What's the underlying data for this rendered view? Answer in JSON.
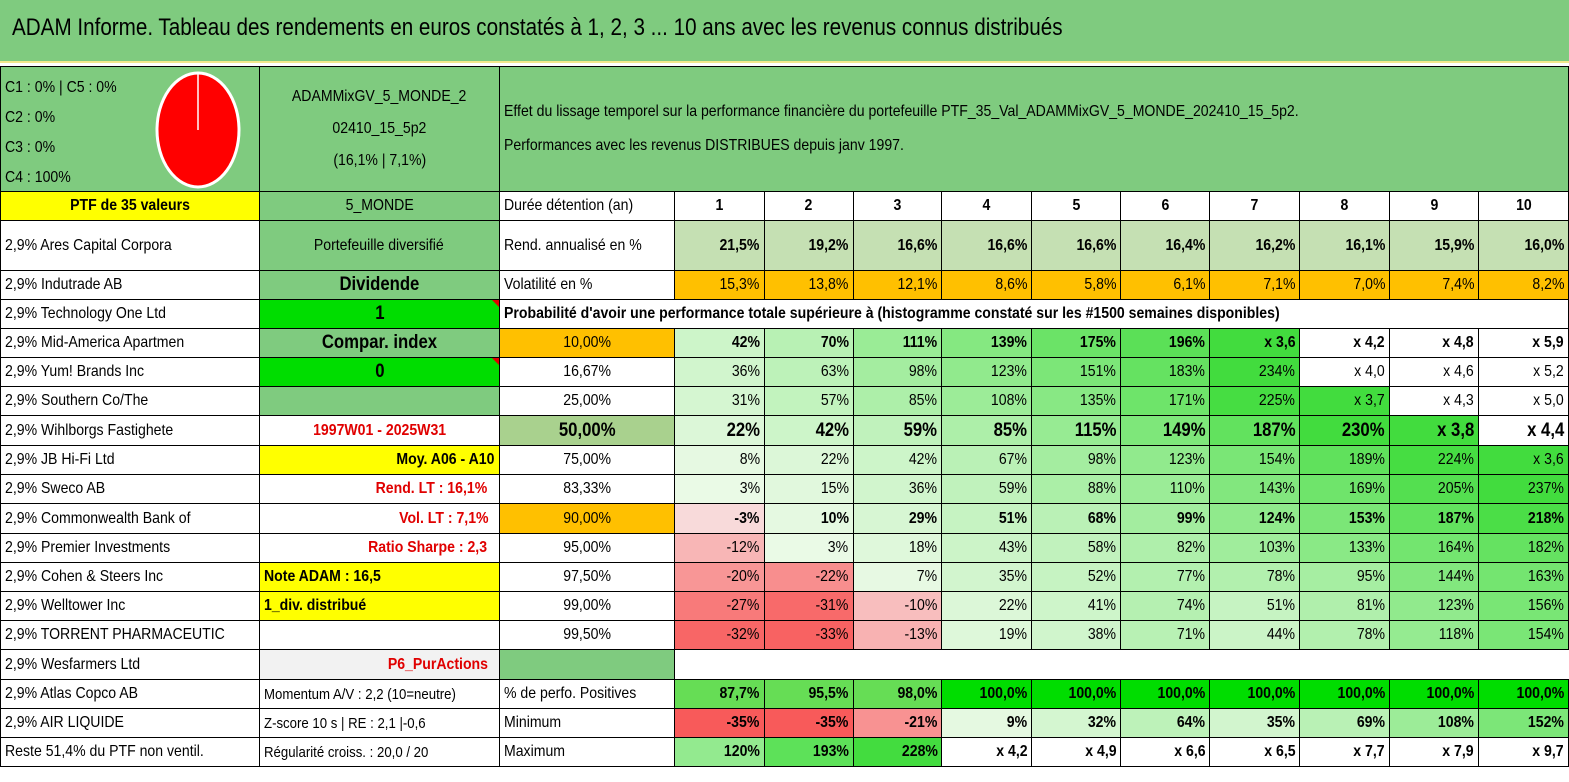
{
  "title": "ADAM Informe. Tableau des rendements en euros constatés à 1, 2, 3 ... 10 ans avec les revenus connus distribués",
  "allocation": {
    "lines": [
      "C1 : 0% | C5 : 0%",
      "C2 : 0%",
      "C3 : 0%",
      "C4 : 100%"
    ],
    "pie_color": "#ff0000"
  },
  "portfolio": {
    "name_line1": "ADAMMixGV_5_MONDE_2",
    "name_line2": "02410_15_5p2",
    "name_line3": "(16,1% | 7,1%)"
  },
  "effect": {
    "line1": "Effet du lissage temporel sur la performance financière du portefeuille PTF_35_Val_ADAMMixGV_5_MONDE_202410_15_5p2.",
    "line2": "Performances avec les revenus DISTRIBUES depuis janv 1997."
  },
  "header_row": {
    "ptf": "PTF de 35 valeurs",
    "zone": "5_MONDE",
    "label": "Durée détention (an)",
    "years": [
      "1",
      "2",
      "3",
      "4",
      "5",
      "6",
      "7",
      "8",
      "9",
      "10"
    ]
  },
  "holdings": [
    "2,9% Ares Capital Corpora",
    "2,9% Indutrade AB",
    "2,9% Technology One Ltd",
    "2,9% Mid-America Apartmen",
    "2,9% Yum! Brands Inc",
    "2,9% Southern Co/The",
    "2,9% Wihlborgs Fastighete",
    "2,9% JB Hi-Fi Ltd",
    "2,9% Sweco AB",
    "2,9% Commonwealth Bank of",
    "2,9% Premier Investments",
    "2,9% Cohen & Steers Inc",
    "2,9% Welltower Inc",
    "2,9% TORRENT PHARMACEUTIC",
    "2,9% Wesfarmers Ltd",
    "2,9% Atlas Copco AB",
    "2,9% AIR LIQUIDE",
    "Reste 51,4% du PTF non ventil."
  ],
  "info": [
    "Portefeuille diversifié",
    "Dividende",
    "1",
    "Compar. index",
    "0",
    "",
    "1997W01 - 2025W31",
    "Moy. A06 - A10",
    "Rend. LT : 16,1%",
    "Vol. LT : 7,1%",
    "Ratio Sharpe : 2,3",
    "Note ADAM : 16,5",
    "1_div. distribué",
    "",
    "P6_PurActions",
    "Momentum A/V : 2,2 (10=neutre)",
    "Z-score 10 s | RE : 2,1 |-0,6",
    "Régularité croiss. : 20,0 / 20"
  ],
  "rend_row": {
    "label": "Rend. annualisé en %",
    "values": [
      "21,5%",
      "19,2%",
      "16,6%",
      "16,6%",
      "16,6%",
      "16,4%",
      "16,2%",
      "16,1%",
      "15,9%",
      "16,0%"
    ]
  },
  "vol_row": {
    "label": "Volatilité en %",
    "values": [
      "15,3%",
      "13,8%",
      "12,1%",
      "8,6%",
      "5,8%",
      "6,1%",
      "7,1%",
      "7,0%",
      "7,4%",
      "8,2%"
    ]
  },
  "prob_title": "Probabilité d'avoir une performance totale supérieure à (histogramme constaté sur les #1500 semaines disponibles)",
  "prob_rows": [
    {
      "p": "10,00%",
      "values": [
        "42%",
        "70%",
        "111%",
        "139%",
        "175%",
        "196%",
        "x 3,6",
        "x 4,2",
        "x 4,8",
        "x 5,9"
      ]
    },
    {
      "p": "16,67%",
      "values": [
        "36%",
        "63%",
        "98%",
        "123%",
        "151%",
        "183%",
        "234%",
        "x 4,0",
        "x 4,6",
        "x 5,2"
      ]
    },
    {
      "p": "25,00%",
      "values": [
        "31%",
        "57%",
        "85%",
        "108%",
        "135%",
        "171%",
        "225%",
        "x 3,7",
        "x 4,3",
        "x 5,0"
      ]
    },
    {
      "p": "50,00%",
      "values": [
        "22%",
        "42%",
        "59%",
        "85%",
        "115%",
        "149%",
        "187%",
        "230%",
        "x 3,8",
        "x 4,4"
      ]
    },
    {
      "p": "75,00%",
      "values": [
        "8%",
        "22%",
        "42%",
        "67%",
        "98%",
        "123%",
        "154%",
        "189%",
        "224%",
        "x 3,6"
      ]
    },
    {
      "p": "83,33%",
      "values": [
        "3%",
        "15%",
        "36%",
        "59%",
        "88%",
        "110%",
        "143%",
        "169%",
        "205%",
        "237%"
      ]
    },
    {
      "p": "90,00%",
      "values": [
        "-3%",
        "10%",
        "29%",
        "51%",
        "68%",
        "99%",
        "124%",
        "153%",
        "187%",
        "218%"
      ]
    },
    {
      "p": "95,00%",
      "values": [
        "-12%",
        "3%",
        "18%",
        "43%",
        "58%",
        "82%",
        "103%",
        "133%",
        "164%",
        "182%"
      ]
    },
    {
      "p": "97,50%",
      "values": [
        "-20%",
        "-22%",
        "7%",
        "35%",
        "52%",
        "77%",
        "78%",
        "95%",
        "144%",
        "163%"
      ]
    },
    {
      "p": "99,00%",
      "values": [
        "-27%",
        "-31%",
        "-10%",
        "22%",
        "41%",
        "74%",
        "51%",
        "81%",
        "123%",
        "156%"
      ]
    },
    {
      "p": "99,50%",
      "values": [
        "-32%",
        "-33%",
        "-13%",
        "19%",
        "38%",
        "71%",
        "44%",
        "78%",
        "118%",
        "154%"
      ]
    }
  ],
  "stats_rows": [
    {
      "label": "% de perfo. Positives",
      "values": [
        "87,7%",
        "95,5%",
        "98,0%",
        "100,0%",
        "100,0%",
        "100,0%",
        "100,0%",
        "100,0%",
        "100,0%",
        "100,0%"
      ]
    },
    {
      "label": "Minimum",
      "values": [
        "-35%",
        "-35%",
        "-21%",
        "9%",
        "32%",
        "64%",
        "35%",
        "69%",
        "108%",
        "152%"
      ]
    },
    {
      "label": "Maximum",
      "values": [
        "120%",
        "193%",
        "228%",
        "x 4,2",
        "x 4,9",
        "x 6,6",
        "x 6,5",
        "x 7,7",
        "x 7,9",
        "x 9,7"
      ]
    }
  ]
}
